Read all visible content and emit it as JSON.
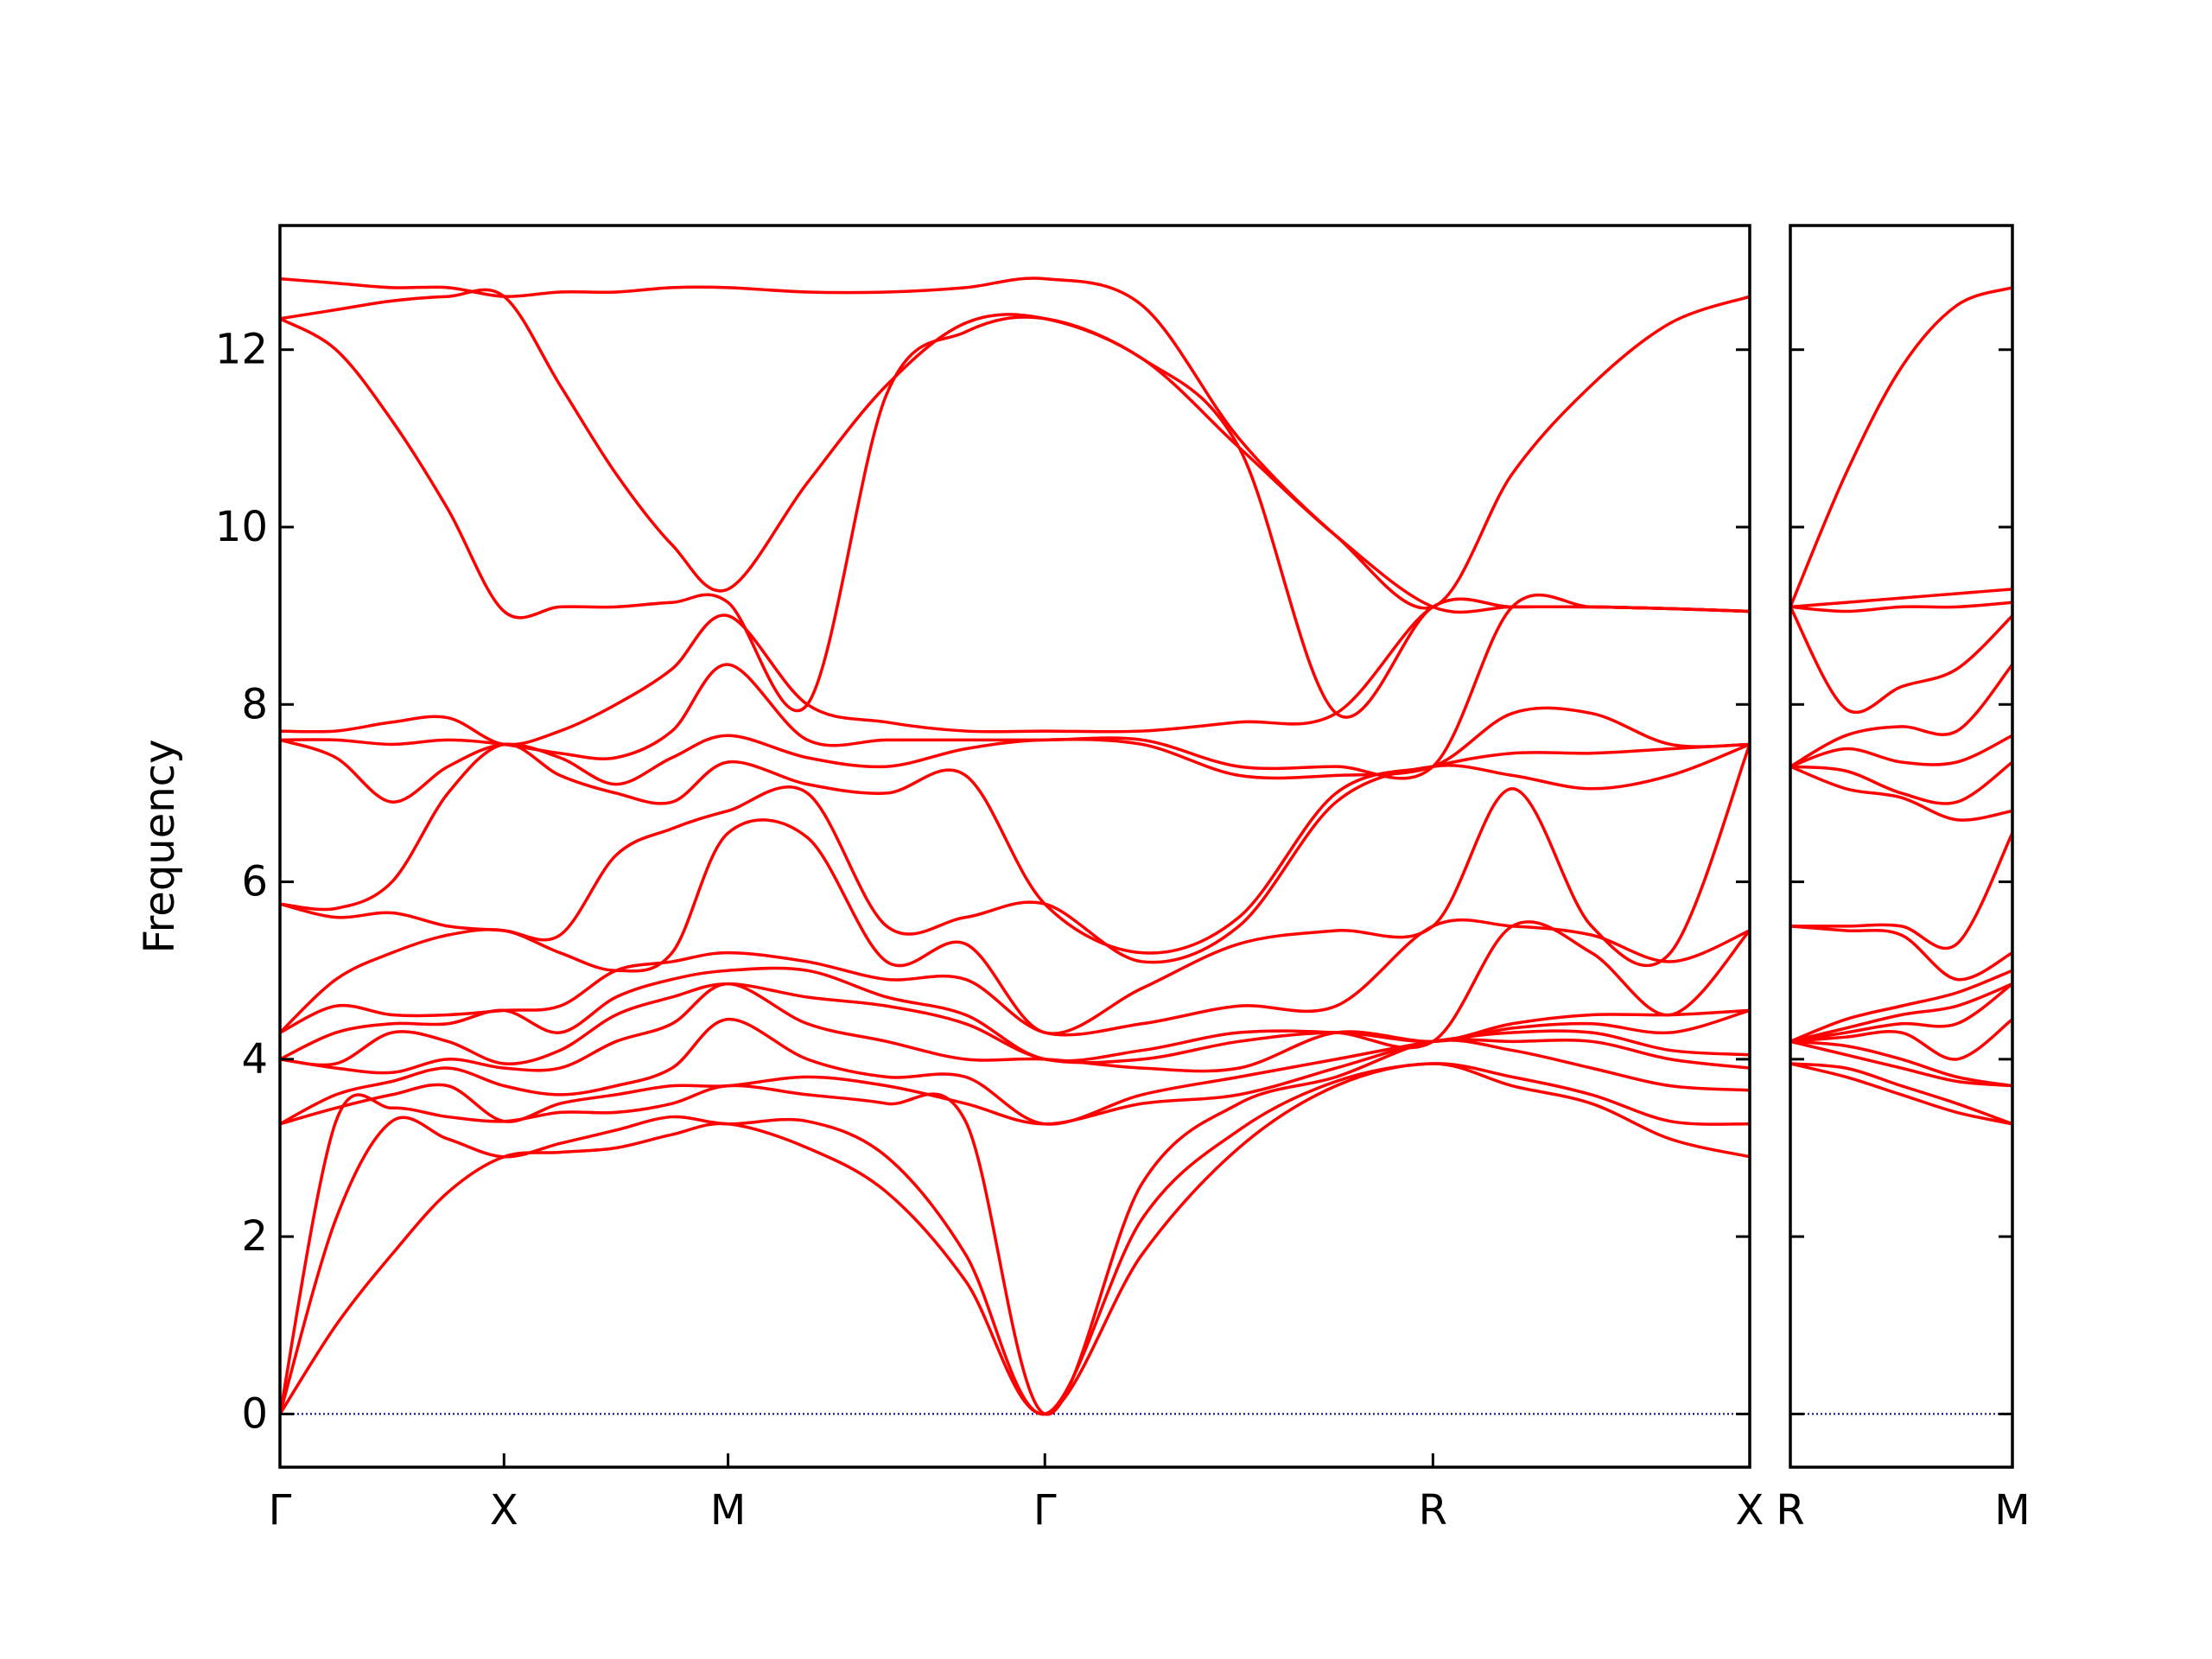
{
  "chart_data": [
    {
      "type": "line",
      "y_label": "Frequency",
      "color": "#ff0000",
      "line_width": 3.5,
      "hline": 0,
      "hline_color": "#00008b",
      "xlim": [
        0,
        3.28
      ],
      "ylim": [
        -0.6,
        13.4
      ],
      "xticks": [
        {
          "value": 0,
          "label": "Γ"
        },
        {
          "value": 0.5,
          "label": "X"
        },
        {
          "value": 1.0,
          "label": "M"
        },
        {
          "value": 1.707,
          "label": "Γ"
        },
        {
          "value": 2.573,
          "label": "R"
        },
        {
          "value": 3.28,
          "label": "X"
        }
      ],
      "yticks": [
        0,
        2,
        4,
        6,
        8,
        10,
        12
      ],
      "ytick_labels": true,
      "x": [
        0,
        0.125,
        0.25,
        0.375,
        0.5,
        0.625,
        0.75,
        0.875,
        1.0,
        1.177,
        1.354,
        1.53,
        1.707,
        1.924,
        2.14,
        2.357,
        2.573,
        2.75,
        2.927,
        3.103,
        3.28
      ],
      "series": [
        {
          "values": [
            0,
            1.0,
            1.8,
            2.5,
            2.9,
            2.95,
            3.0,
            3.15,
            3.27,
            3.0,
            2.5,
            1.5,
            0,
            1.8,
            3.0,
            3.7,
            3.95,
            3.7,
            3.5,
            3.1,
            2.9
          ]
        },
        {
          "values": [
            0,
            2.2,
            3.3,
            3.1,
            2.9,
            3.05,
            3.2,
            3.35,
            3.27,
            3.3,
            2.9,
            1.8,
            0,
            2.2,
            3.2,
            3.75,
            3.95,
            3.8,
            3.6,
            3.3,
            3.27
          ]
        },
        {
          "values": [
            0,
            3.3,
            3.45,
            3.35,
            3.3,
            3.4,
            3.4,
            3.5,
            3.7,
            3.6,
            3.5,
            3.3,
            0,
            2.6,
            3.5,
            3.8,
            4.2,
            4.1,
            3.9,
            3.7,
            3.65
          ]
        },
        {
          "values": [
            3.27,
            3.45,
            3.6,
            3.7,
            3.3,
            3.5,
            3.6,
            3.7,
            3.7,
            3.8,
            3.7,
            3.5,
            3.27,
            3.5,
            3.6,
            3.9,
            4.2,
            4.2,
            4.2,
            4.0,
            3.9
          ]
        },
        {
          "values": [
            3.27,
            3.6,
            3.75,
            3.9,
            3.7,
            3.6,
            3.7,
            3.9,
            4.45,
            4.0,
            3.8,
            3.8,
            3.27,
            3.6,
            3.8,
            4.0,
            4.2,
            4.3,
            4.3,
            4.1,
            4.05
          ]
        },
        {
          "values": [
            4.0,
            3.9,
            3.85,
            4.0,
            3.9,
            3.9,
            4.2,
            4.4,
            4.85,
            4.4,
            4.2,
            4.0,
            4.0,
            3.9,
            3.9,
            4.3,
            4.2,
            4.35,
            4.4,
            4.3,
            4.55
          ]
        },
        {
          "values": [
            4.0,
            3.95,
            4.3,
            4.2,
            3.95,
            4.1,
            4.5,
            4.7,
            4.85,
            4.7,
            4.6,
            4.4,
            4.0,
            4.0,
            4.2,
            4.3,
            4.2,
            4.4,
            4.5,
            4.5,
            4.55
          ]
        },
        {
          "values": [
            4.0,
            4.3,
            4.4,
            4.4,
            4.55,
            4.3,
            4.7,
            4.9,
            5.0,
            5.0,
            4.7,
            4.5,
            4.0,
            4.1,
            4.3,
            4.3,
            4.2,
            5.5,
            5.2,
            4.5,
            5.45
          ]
        },
        {
          "values": [
            4.3,
            4.6,
            4.5,
            4.5,
            4.55,
            4.6,
            5.0,
            5.1,
            5.2,
            5.1,
            4.9,
            4.9,
            4.3,
            4.4,
            4.6,
            4.6,
            5.5,
            5.5,
            5.4,
            5.1,
            5.45
          ]
        },
        {
          "values": [
            4.3,
            4.9,
            5.2,
            5.4,
            5.45,
            5.2,
            5.0,
            5.2,
            6.55,
            6.5,
            5.1,
            5.3,
            4.3,
            4.8,
            5.3,
            5.45,
            5.5,
            7.05,
            5.5,
            5.2,
            7.55
          ]
        },
        {
          "values": [
            5.75,
            5.6,
            5.65,
            5.5,
            5.45,
            5.4,
            6.3,
            6.6,
            6.8,
            7.0,
            5.5,
            5.6,
            5.75,
            5.1,
            5.5,
            6.9,
            7.3,
            7.2,
            7.05,
            7.2,
            7.55
          ]
        },
        {
          "values": [
            5.75,
            5.7,
            6.0,
            7.0,
            7.55,
            7.2,
            7.0,
            6.9,
            7.35,
            7.1,
            7.0,
            7.2,
            5.75,
            5.2,
            5.6,
            7.0,
            7.3,
            7.45,
            7.45,
            7.5,
            7.55
          ]
        },
        {
          "values": [
            7.6,
            7.4,
            6.9,
            7.3,
            7.55,
            7.4,
            7.1,
            7.4,
            7.65,
            7.4,
            7.3,
            7.5,
            7.6,
            7.55,
            7.2,
            7.2,
            7.3,
            7.9,
            7.9,
            7.55,
            7.55
          ]
        },
        {
          "values": [
            7.6,
            7.6,
            7.55,
            7.6,
            7.55,
            7.45,
            7.4,
            7.7,
            8.45,
            7.6,
            7.6,
            7.6,
            7.6,
            7.6,
            7.3,
            7.3,
            7.3,
            9.1,
            9.1,
            9.08,
            9.05
          ]
        },
        {
          "values": [
            7.7,
            7.7,
            7.8,
            7.85,
            7.55,
            7.7,
            8.0,
            8.4,
            9.0,
            8.0,
            7.8,
            7.7,
            7.7,
            7.7,
            7.8,
            7.9,
            9.1,
            9.1,
            9.1,
            9.08,
            9.05
          ]
        },
        {
          "values": [
            12.35,
            12.0,
            11.2,
            10.2,
            9.05,
            9.1,
            9.1,
            9.15,
            9.15,
            8.0,
            11.5,
            12.2,
            12.35,
            11.9,
            10.9,
            7.9,
            9.1,
            9.1,
            9.1,
            9.08,
            9.05
          ]
        },
        {
          "values": [
            12.35,
            12.45,
            12.55,
            12.6,
            12.6,
            11.6,
            10.6,
            9.8,
            9.3,
            10.5,
            11.6,
            12.3,
            12.35,
            11.9,
            10.9,
            9.9,
            9.1,
            9.1,
            9.1,
            9.08,
            9.05
          ]
        },
        {
          "values": [
            12.8,
            12.75,
            12.7,
            12.7,
            12.6,
            12.65,
            12.65,
            12.7,
            12.7,
            12.65,
            12.65,
            12.7,
            12.8,
            12.5,
            11.0,
            9.9,
            9.1,
            10.6,
            11.6,
            12.3,
            12.6
          ]
        }
      ]
    },
    {
      "type": "line",
      "color": "#ff0000",
      "line_width": 3.5,
      "hline": 0,
      "hline_color": "#00008b",
      "xlim": [
        0,
        0.5
      ],
      "ylim": [
        -0.6,
        13.4
      ],
      "xticks": [
        {
          "value": 0,
          "label": "R"
        },
        {
          "value": 0.5,
          "label": "M"
        }
      ],
      "yticks": [
        0,
        2,
        4,
        6,
        8,
        10,
        12
      ],
      "ytick_labels": false,
      "x": [
        0,
        0.125,
        0.25,
        0.375,
        0.5
      ],
      "series": [
        {
          "values": [
            3.95,
            3.8,
            3.6,
            3.4,
            3.27
          ]
        },
        {
          "values": [
            3.95,
            3.9,
            3.7,
            3.5,
            3.27
          ]
        },
        {
          "values": [
            4.2,
            4.05,
            3.9,
            3.75,
            3.7
          ]
        },
        {
          "values": [
            4.2,
            4.15,
            4.0,
            3.8,
            3.7
          ]
        },
        {
          "values": [
            4.2,
            4.25,
            4.3,
            4.0,
            4.45
          ]
        },
        {
          "values": [
            4.2,
            4.3,
            4.4,
            4.4,
            4.85
          ]
        },
        {
          "values": [
            4.2,
            4.35,
            4.5,
            4.6,
            4.85
          ]
        },
        {
          "values": [
            4.2,
            4.45,
            4.6,
            4.75,
            5.0
          ]
        },
        {
          "values": [
            5.5,
            5.45,
            5.4,
            4.9,
            5.2
          ]
        },
        {
          "values": [
            5.5,
            5.5,
            5.5,
            5.3,
            6.55
          ]
        },
        {
          "values": [
            7.3,
            7.05,
            6.95,
            6.7,
            6.8
          ]
        },
        {
          "values": [
            7.3,
            7.25,
            7.0,
            6.9,
            7.35
          ]
        },
        {
          "values": [
            7.3,
            7.5,
            7.35,
            7.35,
            7.65
          ]
        },
        {
          "values": [
            7.3,
            7.65,
            7.75,
            7.7,
            8.45
          ]
        },
        {
          "values": [
            9.1,
            7.95,
            8.2,
            8.4,
            9.0
          ]
        },
        {
          "values": [
            9.1,
            9.05,
            9.1,
            9.1,
            9.15
          ]
        },
        {
          "values": [
            9.1,
            9.15,
            9.2,
            9.25,
            9.3
          ]
        },
        {
          "values": [
            9.1,
            10.6,
            11.8,
            12.5,
            12.7
          ]
        }
      ]
    }
  ]
}
